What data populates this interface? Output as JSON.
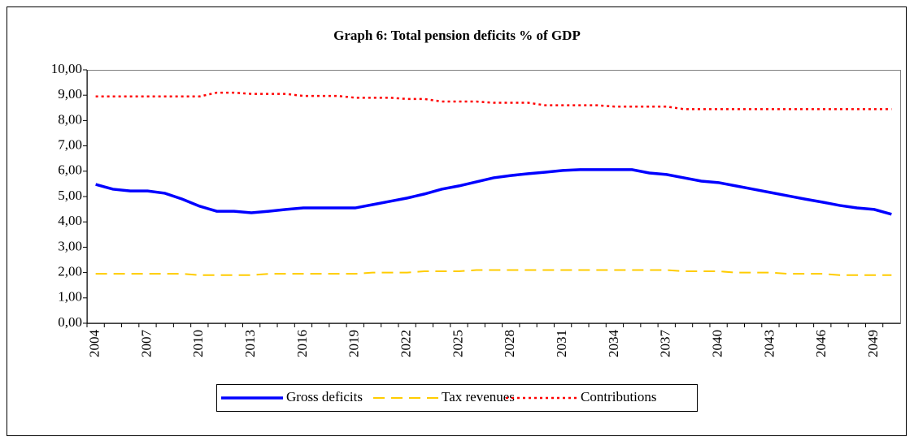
{
  "chart_data": {
    "type": "line",
    "title": "Graph 6: Total pension deficits % of GDP",
    "categories": [
      "2004",
      null,
      null,
      "2007",
      null,
      null,
      "2010",
      null,
      null,
      "2013",
      null,
      null,
      "2016",
      null,
      null,
      "2019",
      null,
      null,
      "2022",
      null,
      null,
      "2025",
      null,
      null,
      "2028",
      null,
      null,
      "2031",
      null,
      null,
      "2034",
      null,
      null,
      "2037",
      null,
      null,
      "2040",
      null,
      null,
      "2043",
      null,
      null,
      "2046",
      null,
      null,
      "2049",
      null
    ],
    "series": [
      {
        "name": "Gross deficits",
        "color": "#0000ff",
        "dash": "solid",
        "values": [
          5.48,
          5.29,
          5.22,
          5.22,
          5.13,
          4.9,
          4.62,
          4.42,
          4.42,
          4.36,
          4.42,
          4.49,
          4.55,
          4.55,
          4.55,
          4.55,
          4.68,
          4.81,
          4.94,
          5.1,
          5.29,
          5.42,
          5.58,
          5.74,
          5.83,
          5.9,
          5.96,
          6.03,
          6.06,
          6.06,
          6.06,
          6.06,
          5.93,
          5.87,
          5.74,
          5.61,
          5.55,
          5.42,
          5.29,
          5.16,
          5.03,
          4.9,
          4.78,
          4.65,
          4.55,
          4.49,
          4.3
        ]
      },
      {
        "name": "Tax revenues",
        "color": "#ffcc00",
        "dash": "dashed",
        "values": [
          1.95,
          1.95,
          1.95,
          1.95,
          1.95,
          1.95,
          1.9,
          1.9,
          1.9,
          1.9,
          1.95,
          1.95,
          1.95,
          1.95,
          1.95,
          1.95,
          2.0,
          2.0,
          2.0,
          2.05,
          2.05,
          2.05,
          2.1,
          2.1,
          2.1,
          2.1,
          2.1,
          2.1,
          2.1,
          2.1,
          2.1,
          2.1,
          2.1,
          2.1,
          2.05,
          2.05,
          2.05,
          2.0,
          2.0,
          2.0,
          1.95,
          1.95,
          1.95,
          1.9,
          1.9,
          1.9,
          1.9
        ]
      },
      {
        "name": "Contributions",
        "color": "#ff0000",
        "dash": "dotted",
        "values": [
          8.95,
          8.95,
          8.95,
          8.95,
          8.95,
          8.95,
          8.95,
          9.1,
          9.1,
          9.05,
          9.05,
          9.05,
          8.97,
          8.97,
          8.97,
          8.9,
          8.9,
          8.9,
          8.85,
          8.85,
          8.75,
          8.75,
          8.75,
          8.7,
          8.7,
          8.7,
          8.6,
          8.6,
          8.6,
          8.6,
          8.55,
          8.55,
          8.55,
          8.55,
          8.45,
          8.45,
          8.45,
          8.45,
          8.45,
          8.45,
          8.45,
          8.45,
          8.45,
          8.45,
          8.45,
          8.45,
          8.45
        ]
      }
    ],
    "ylim": [
      0,
      10
    ],
    "yticks": [
      {
        "value": 0,
        "label": "0,00"
      },
      {
        "value": 1,
        "label": "1,00"
      },
      {
        "value": 2,
        "label": "2,00"
      },
      {
        "value": 3,
        "label": "3,00"
      },
      {
        "value": 4,
        "label": "4,00"
      },
      {
        "value": 5,
        "label": "5,00"
      },
      {
        "value": 6,
        "label": "6,00"
      },
      {
        "value": 7,
        "label": "7,00"
      },
      {
        "value": 8,
        "label": "8,00"
      },
      {
        "value": 9,
        "label": "9,00"
      },
      {
        "value": 10,
        "label": "10,00"
      }
    ],
    "grid": false,
    "legend": "bottom"
  }
}
